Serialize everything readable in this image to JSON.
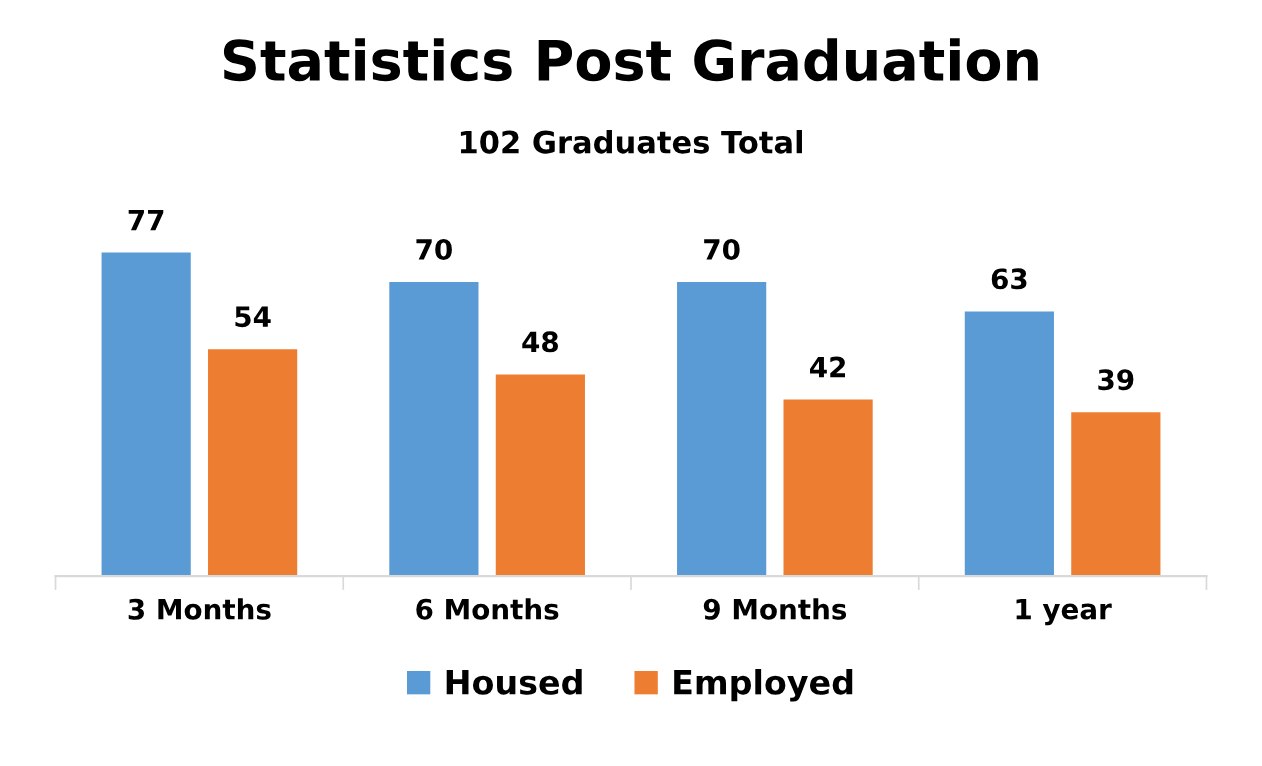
{
  "chart_data": {
    "type": "bar",
    "title": "Statistics Post Graduation",
    "subtitle": "102 Graduates Total",
    "categories": [
      "3 Months",
      "6 Months",
      "9 Months",
      "1 year"
    ],
    "series": [
      {
        "name": "Housed",
        "color": "#5b9bd5",
        "values": [
          77,
          70,
          70,
          63
        ]
      },
      {
        "name": "Employed",
        "color": "#ed7d31",
        "values": [
          54,
          48,
          42,
          39
        ]
      }
    ],
    "tick_labels": "x",
    "data_labels": true,
    "grid": false,
    "legend": "bottom"
  }
}
